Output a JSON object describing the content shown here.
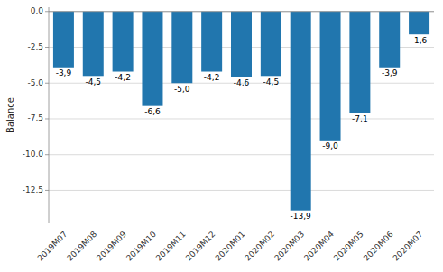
{
  "chart_data": {
    "type": "bar",
    "ylabel": "Balance",
    "categories": [
      "2019M07",
      "2019M08",
      "2019M09",
      "2019M10",
      "2019M11",
      "2019M12",
      "2020M01",
      "2020M02",
      "2020M03",
      "2020M04",
      "2020M05",
      "2020M06",
      "2020M07"
    ],
    "values": [
      -3.9,
      -4.5,
      -4.2,
      -6.6,
      -5.0,
      -4.2,
      -4.6,
      -4.5,
      -13.9,
      -9.0,
      -7.1,
      -3.9,
      -1.6
    ],
    "value_labels": [
      "-3,9",
      "-4,5",
      "-4,2",
      "-6,6",
      "-5,0",
      "-4,2",
      "-4,6",
      "-4,5",
      "-13,9",
      "-9,0",
      "-7,1",
      "-3,9",
      "-1,6"
    ],
    "data_labels": true,
    "color": "#2176ae",
    "ylim": [
      -14.8,
      0.3
    ],
    "yticks": [
      {
        "value": 0.0,
        "label": "0.0"
      },
      -2.5,
      {
        "value": -5.0,
        "label": "-5.0"
      },
      -7.5,
      {
        "value": -10.0,
        "label": "-10.0"
      },
      -12.5
    ],
    "grid": true
  }
}
